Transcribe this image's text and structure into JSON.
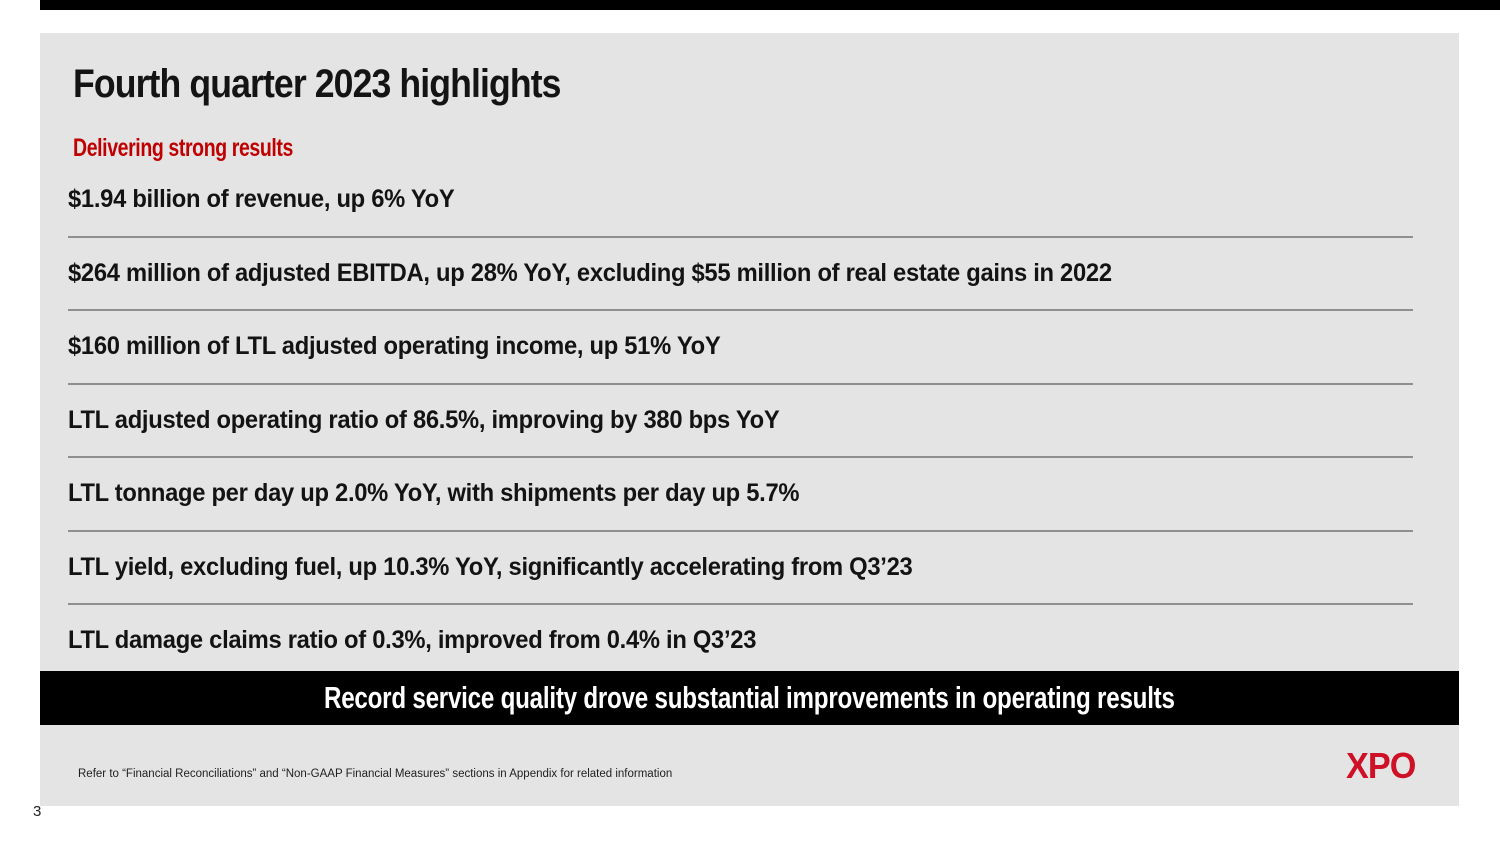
{
  "page": {
    "number": "3"
  },
  "slide": {
    "title": "Fourth quarter 2023 highlights",
    "subtitle": "Delivering strong results",
    "highlights": [
      "$1.94 billion of revenue, up 6% YoY",
      "$264 million of adjusted EBITDA, up 28% YoY, excluding $55 million of real estate gains in 2022",
      "$160 million of LTL adjusted operating income, up 51% YoY",
      "LTL adjusted operating ratio of 86.5%, improving by 380 bps YoY",
      "LTL tonnage per day up 2.0% YoY, with shipments per day up 5.7%",
      "LTL yield, excluding fuel, up 10.3% YoY, significantly accelerating from Q3’23",
      "LTL damage claims ratio of 0.3%, improved from 0.4% in Q3’23"
    ],
    "banner": "Record service quality drove substantial improvements in operating results",
    "footnote": "Refer to “Financial Reconciliations” and “Non-GAAP Financial Measures” sections in Appendix for related information",
    "logo_text": "XPO"
  },
  "colors": {
    "slide_background": "#e5e4e4",
    "page_background": "#ffffff",
    "top_bar": "#000000",
    "banner_background": "#000000",
    "banner_text": "#ffffff",
    "subtitle_red": "#c00000",
    "brand_red": "#ce1126",
    "divider_gray": "#8f8f8f",
    "body_text": "#131313"
  }
}
